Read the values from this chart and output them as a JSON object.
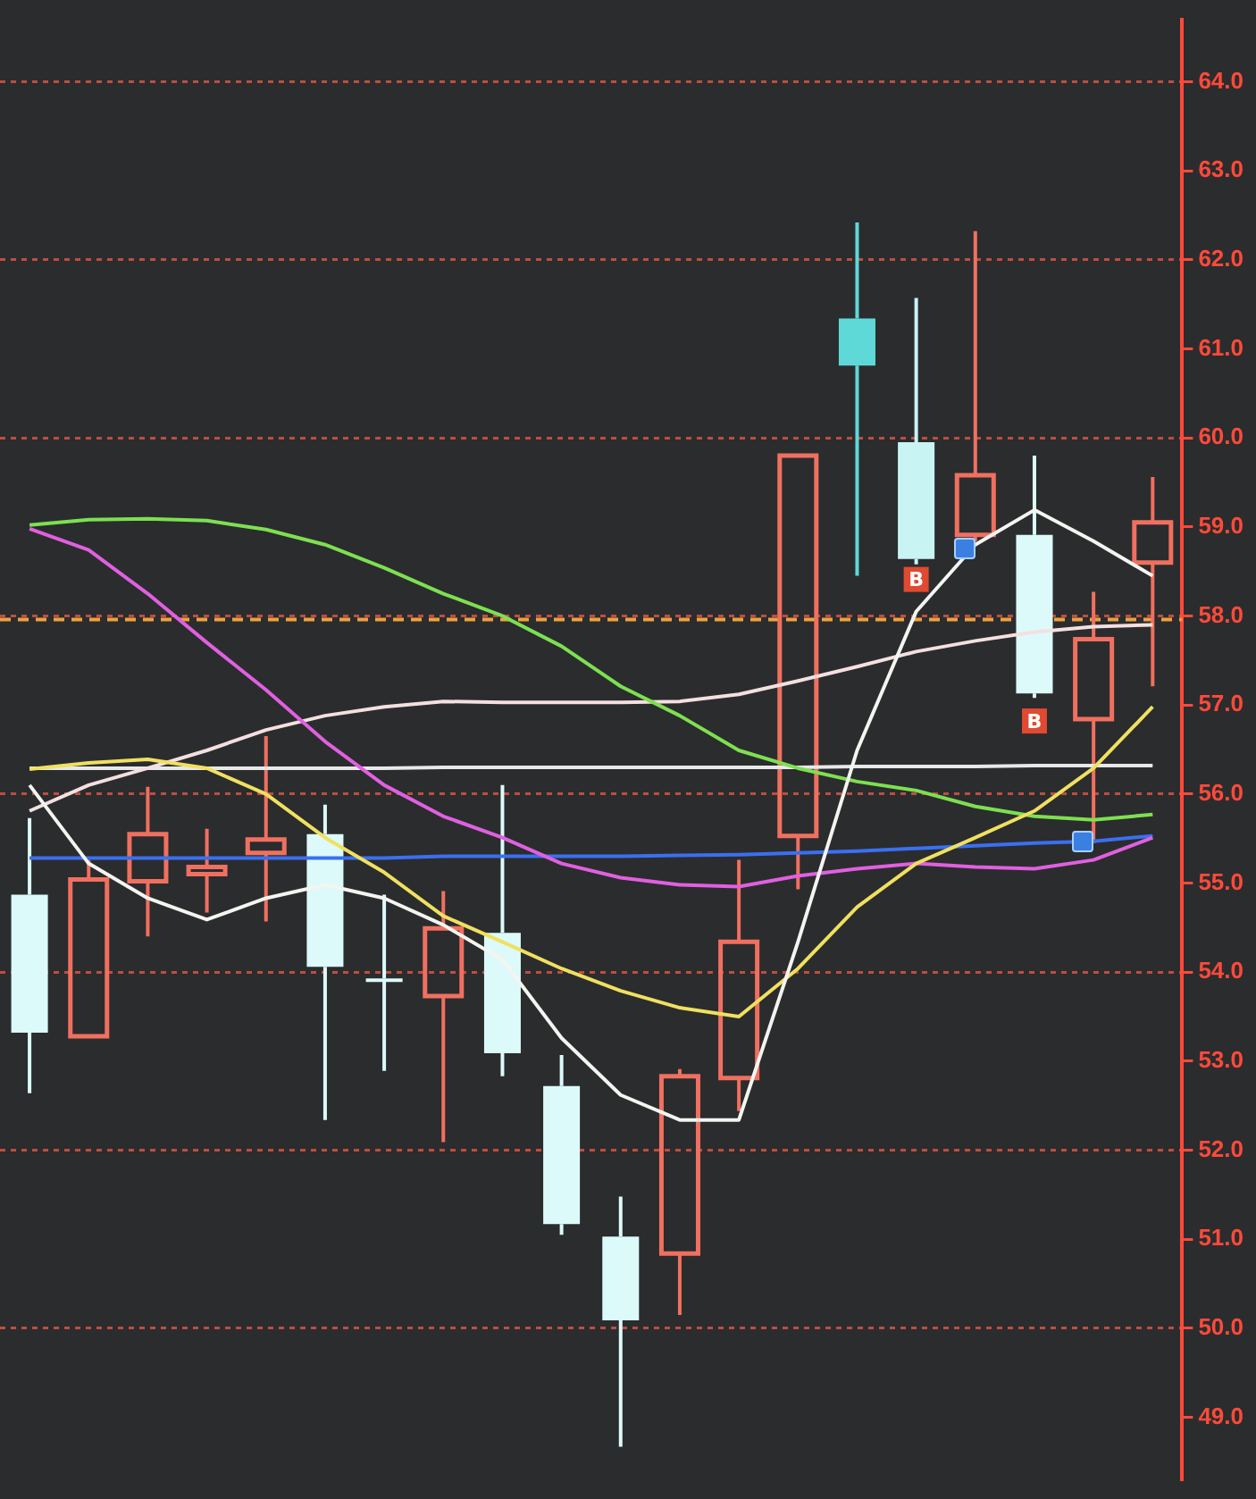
{
  "chart_data": {
    "type": "candlestick",
    "categories": [
      null,
      null,
      null,
      null,
      null,
      null,
      null,
      null,
      null,
      null,
      null,
      null,
      null,
      null,
      null,
      null,
      null,
      null,
      null,
      null
    ],
    "ohlc": [
      [
        54.87,
        55.73,
        52.64,
        53.32
      ],
      [
        53.28,
        55.26,
        53.28,
        55.04
      ],
      [
        55.02,
        56.08,
        54.4,
        55.55
      ],
      [
        55.1,
        55.61,
        54.67,
        55.18
      ],
      [
        55.34,
        56.65,
        54.57,
        55.49
      ],
      [
        55.55,
        55.88,
        52.34,
        54.06
      ],
      [
        53.93,
        54.87,
        52.89,
        53.91
      ],
      [
        53.73,
        54.91,
        52.09,
        54.49
      ],
      [
        54.44,
        56.1,
        52.83,
        53.09
      ],
      [
        52.72,
        53.07,
        51.05,
        51.17
      ],
      [
        51.03,
        51.48,
        48.67,
        50.09
      ],
      [
        50.84,
        52.91,
        50.15,
        52.83
      ],
      [
        52.81,
        55.26,
        52.44,
        54.34
      ],
      [
        55.53,
        59.8,
        54.93,
        59.8
      ],
      [
        61.34,
        62.42,
        58.45,
        60.81
      ],
      [
        59.95,
        61.57,
        58.58,
        58.64
      ],
      [
        58.91,
        62.32,
        58.84,
        59.58
      ],
      [
        58.91,
        59.8,
        57.08,
        57.13
      ],
      [
        56.84,
        58.27,
        55.45,
        57.74
      ],
      [
        58.6,
        59.56,
        57.21,
        59.05
      ]
    ],
    "colors": [
      "#dcfafa",
      "#f07060",
      "#f07060",
      "#f07060",
      "#f07060",
      "#dcfafa",
      "#dcfafa",
      "#f07060",
      "#dcfafa",
      "#dcfafa",
      "#dcfafa",
      "#f07060",
      "#f07060",
      "#f07060",
      "#5fd8d8",
      "#c8f4f4",
      "#f07060",
      "#dcfafa",
      "#f07060",
      "#f07060"
    ],
    "series": [
      {
        "type": "line",
        "color": "#f4f4f0",
        "values": [
          56.1,
          55.22,
          54.83,
          54.59,
          54.83,
          54.98,
          54.83,
          54.53,
          54.14,
          53.26,
          52.62,
          52.34,
          52.34,
          54.34,
          56.49,
          58.05,
          58.8,
          59.19,
          58.84,
          58.45
        ]
      },
      {
        "type": "line",
        "color": "#f0e060",
        "values": [
          56.28,
          56.35,
          56.39,
          56.29,
          56.0,
          55.51,
          55.12,
          54.63,
          54.34,
          54.04,
          53.79,
          53.6,
          53.5,
          54.04,
          54.73,
          55.22,
          55.51,
          55.81,
          56.29,
          56.98
        ]
      },
      {
        "type": "line",
        "color": "#7de050",
        "values": [
          59.02,
          59.08,
          59.09,
          59.07,
          58.97,
          58.8,
          58.54,
          58.25,
          58.0,
          57.66,
          57.21,
          56.88,
          56.49,
          56.29,
          56.14,
          56.04,
          55.86,
          55.75,
          55.71,
          55.77
        ]
      },
      {
        "type": "line",
        "color": "#e060e0",
        "values": [
          58.98,
          58.74,
          58.25,
          57.7,
          57.17,
          56.59,
          56.1,
          55.75,
          55.51,
          55.22,
          55.06,
          54.98,
          54.96,
          55.08,
          55.16,
          55.22,
          55.18,
          55.16,
          55.26,
          55.51
        ]
      },
      {
        "type": "line",
        "color": "#3a70f0",
        "values": [
          55.28,
          55.28,
          55.28,
          55.28,
          55.28,
          55.28,
          55.28,
          55.3,
          55.3,
          55.3,
          55.3,
          55.31,
          55.32,
          55.34,
          55.36,
          55.39,
          55.42,
          55.45,
          55.47,
          55.53
        ]
      },
      {
        "type": "line",
        "color": "#f4e0e0",
        "values": [
          55.81,
          56.1,
          56.29,
          56.49,
          56.72,
          56.88,
          56.98,
          57.04,
          57.03,
          57.03,
          57.03,
          57.04,
          57.12,
          57.27,
          57.43,
          57.6,
          57.72,
          57.82,
          57.88,
          57.9
        ]
      },
      {
        "type": "line",
        "color": "#e8e8e8",
        "values": [
          56.29,
          56.29,
          56.29,
          56.29,
          56.29,
          56.29,
          56.29,
          56.3,
          56.3,
          56.3,
          56.3,
          56.3,
          56.3,
          56.3,
          56.31,
          56.31,
          56.31,
          56.32,
          56.32,
          56.32
        ]
      }
    ],
    "ref_lines": [
      {
        "axis": "y",
        "value": 57.96,
        "color": "#f0a040",
        "line_style": "dashed"
      }
    ],
    "annotations": [
      {
        "text": "B",
        "y": 58.41
      },
      {
        "text": "B",
        "y": 56.82
      }
    ],
    "ylim": [
      48.3,
      64.7
    ],
    "yticks": [
      {
        "value": 49,
        "label": "49.0"
      },
      {
        "value": 50,
        "label": "50.0"
      },
      {
        "value": 51,
        "label": "51.0"
      },
      {
        "value": 52,
        "label": "52.0"
      },
      {
        "value": 53,
        "label": "53.0"
      },
      {
        "value": 54,
        "label": "54.0"
      },
      {
        "value": 55,
        "label": "55.0"
      },
      {
        "value": 56,
        "label": "56.0"
      },
      {
        "value": 57,
        "label": "57.0"
      },
      {
        "value": 58,
        "label": "58.0"
      },
      {
        "value": 59,
        "label": "59.0"
      },
      {
        "value": 60,
        "label": "60.0"
      },
      {
        "value": 61,
        "label": "61.0"
      },
      {
        "value": 62,
        "label": "62.0"
      },
      {
        "value": 63,
        "label": "63.0"
      },
      {
        "value": 64,
        "label": "64.0"
      }
    ],
    "grid": "y",
    "legend": false,
    "tick_labels": "y",
    "marker": "none",
    "line_style": "solid"
  }
}
